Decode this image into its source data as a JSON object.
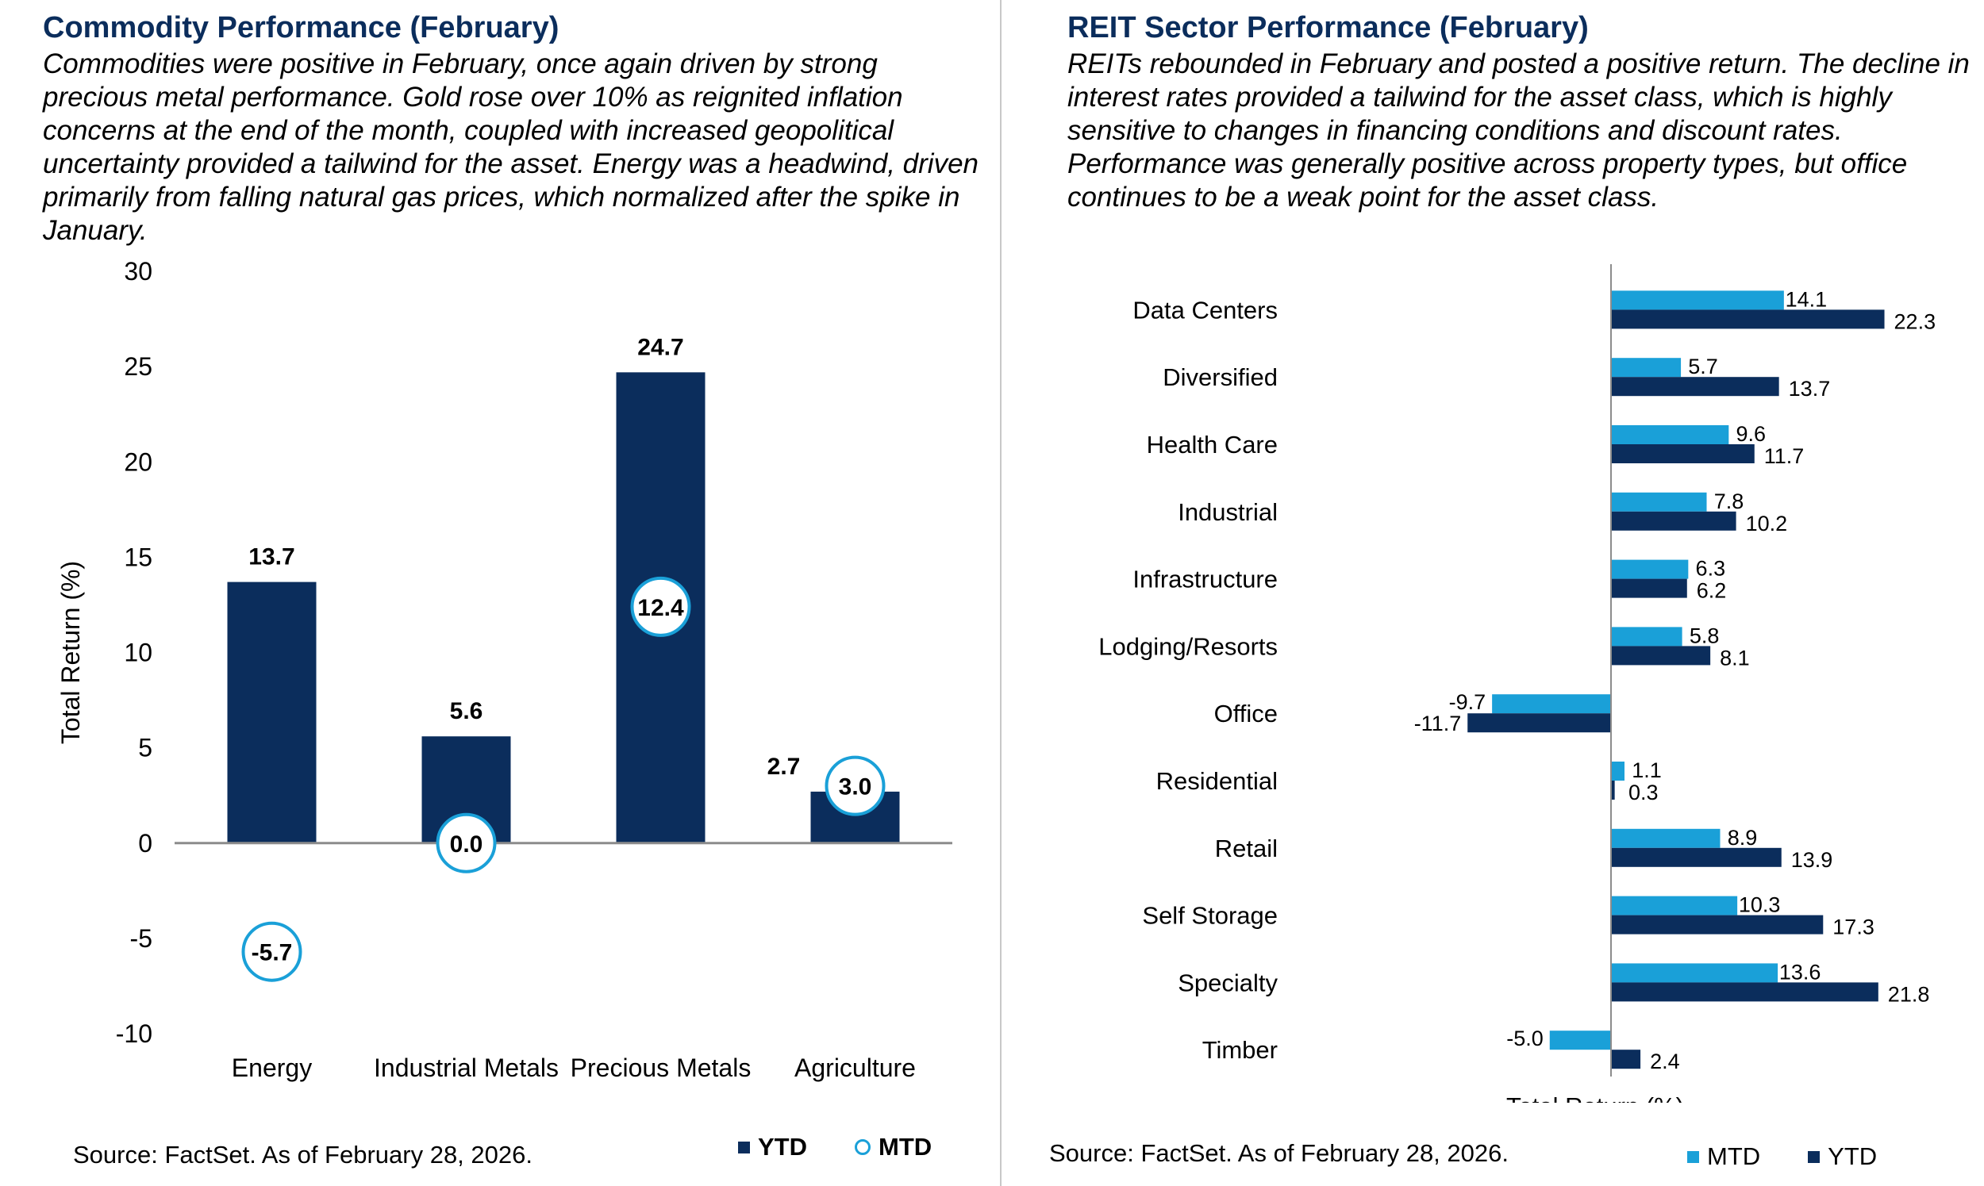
{
  "left": {
    "title": "Commodity Performance (February)",
    "description": "Commodities were positive in February, once again driven by strong precious metal performance. Gold rose over 10% as reignited inflation concerns at the end of the month, coupled with increased geopolitical uncertainty provided a tailwind for the asset. Energy was a headwind, driven primarily from falling natural gas prices, which normalized after the spike in January.",
    "source": "Source: FactSet. As of February 28, 2026.",
    "legend": {
      "ytd": "YTD",
      "mtd": "MTD"
    }
  },
  "right": {
    "title": "REIT Sector Performance (February)",
    "description": "REITs rebounded in February and posted a positive return. The decline in interest rates provided a tailwind for the asset class, which is highly sensitive to changes in financing conditions and discount rates. Performance was generally positive across property types, but office continues to be a weak point for the asset class.",
    "source": "Source: FactSet. As of February 28, 2026.",
    "legend": {
      "mtd": "MTD",
      "ytd": "YTD"
    }
  },
  "colors": {
    "ytd": "#0b2d5c",
    "mtd": "#1aa0d8",
    "axis": "#8c8c8c"
  },
  "chart_data": [
    {
      "type": "bar",
      "title": "Commodity Performance (February)",
      "categories": [
        "Energy",
        "Industrial Metals",
        "Precious Metals",
        "Agriculture"
      ],
      "series": [
        {
          "name": "YTD",
          "values": [
            13.7,
            5.6,
            24.7,
            2.7
          ],
          "labels": [
            "13.7",
            "5.6",
            "24.7",
            "2.7"
          ]
        },
        {
          "name": "MTD",
          "values": [
            -5.7,
            0.0,
            12.4,
            3.0
          ],
          "labels": [
            "-5.7",
            "0.0",
            "12.4",
            "3.0"
          ]
        }
      ],
      "ylabel": "Total Return (%)",
      "ylim": [
        -10,
        30
      ],
      "yticks": [
        "30",
        "25",
        "20",
        "15",
        "10",
        "5",
        "0",
        "-5",
        "-10"
      ],
      "ytick_values": [
        30,
        25,
        20,
        15,
        10,
        5,
        0,
        -5,
        -10
      ]
    },
    {
      "type": "bar",
      "orientation": "horizontal",
      "title": "REIT Sector Performance (February)",
      "categories": [
        "Data Centers",
        "Diversified",
        "Health Care",
        "Industrial",
        "Infrastructure",
        "Lodging/Resorts",
        "Office",
        "Residential",
        "Retail",
        "Self Storage",
        "Specialty",
        "Timber"
      ],
      "series": [
        {
          "name": "MTD",
          "values": [
            14.1,
            5.7,
            9.6,
            7.8,
            6.3,
            5.8,
            -9.7,
            1.1,
            8.9,
            10.3,
            13.6,
            -5.0
          ],
          "labels": [
            "14.1",
            "5.7",
            "9.6",
            "7.8",
            "6.3",
            "5.8",
            "-9.7",
            "1.1",
            "8.9",
            "10.3",
            "13.6",
            "-5.0"
          ]
        },
        {
          "name": "YTD",
          "values": [
            22.3,
            13.7,
            11.7,
            10.2,
            6.2,
            8.1,
            -11.7,
            0.3,
            13.9,
            17.3,
            21.8,
            2.4
          ],
          "labels": [
            "22.3",
            "13.7",
            "11.7",
            "10.2",
            "6.2",
            "8.1",
            "-11.7",
            "0.3",
            "13.9",
            "17.3",
            "21.8",
            "2.4"
          ]
        }
      ],
      "xlabel": "Total Return (%)",
      "xlim": [
        -15,
        30
      ]
    }
  ]
}
